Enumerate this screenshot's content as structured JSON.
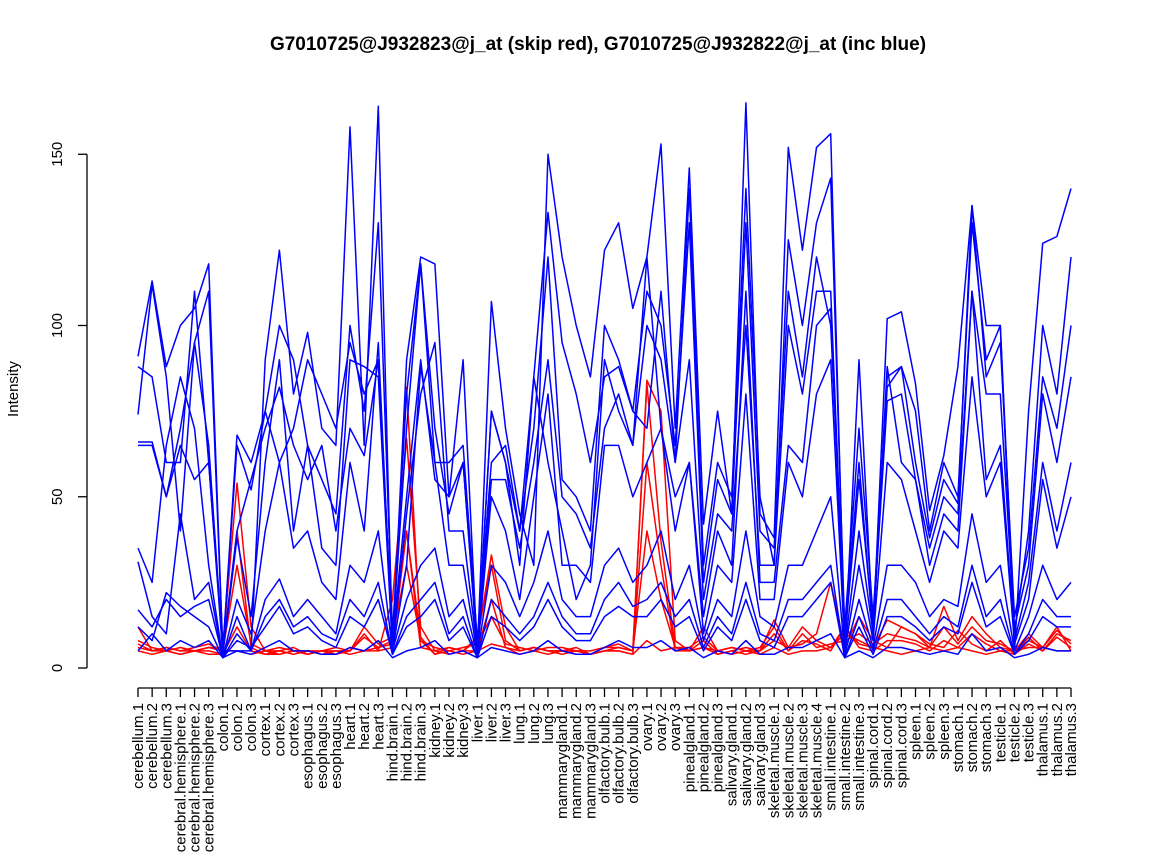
{
  "chart_data": {
    "type": "line",
    "title": "G7010725@J932823@j_at (skip red), G7010725@J932822@j_at (inc blue)",
    "xlabel": "",
    "ylabel": "Intensity",
    "ylim": [
      0,
      165
    ],
    "yticks": [
      0,
      50,
      100,
      150
    ],
    "grid": false,
    "legend": "none",
    "colors": {
      "red": "#ff0000",
      "blue": "#0000ff"
    },
    "categories": [
      "cerebellum.1",
      "cerebellum.2",
      "cerebellum.3",
      "cerebral.hemisphere.1",
      "cerebral.hemisphere.2",
      "cerebral.hemisphere.3",
      "colon.1",
      "colon.2",
      "colon.3",
      "cortex.1",
      "cortex.2",
      "cortex.3",
      "esophagus.1",
      "esophagus.2",
      "esophagus.3",
      "heart.1",
      "heart.2",
      "heart.3",
      "hind.brain.1",
      "hind.brain.2",
      "hind.brain.3",
      "kidney.1",
      "kidney.2",
      "kidney.3",
      "liver.1",
      "liver.2",
      "liver.3",
      "lung.1",
      "lung.2",
      "lung.3",
      "mammarygland.1",
      "mammarygland.2",
      "mammarygland.3",
      "olfactory.bulb.1",
      "olfactory.bulb.2",
      "olfactory.bulb.3",
      "ovary.1",
      "ovary.2",
      "ovary.3",
      "pinealgland.1",
      "pinealgland.2",
      "pinealgland.3",
      "salivary.gland.1",
      "salivary.gland.2",
      "salivary.gland.3",
      "skeletal.muscle.1",
      "skeletal.muscle.2",
      "skeletal.muscle.3",
      "skeletal.muscle.4",
      "small.intestine.1",
      "small.intestine.2",
      "small.intestine.3",
      "spinal.cord.1",
      "spinal.cord.2",
      "spinal.cord.3",
      "spleen.1",
      "spleen.2",
      "spleen.3",
      "stomach.1",
      "stomach.2",
      "stomach.3",
      "testicle.1",
      "testicle.2",
      "testicle.3",
      "thalamus.1",
      "thalamus.2",
      "thalamus.3"
    ],
    "series": [
      {
        "color": "red",
        "values": [
          12,
          5,
          6,
          5,
          5,
          6,
          5,
          5,
          4,
          5,
          6,
          5,
          4,
          5,
          4,
          6,
          5,
          6,
          8,
          40,
          9,
          4,
          5,
          4,
          5,
          7,
          6,
          5,
          6,
          5,
          4,
          5,
          4,
          5,
          5,
          4,
          8,
          5,
          6,
          5,
          6,
          5,
          4,
          5,
          4,
          6,
          4,
          5,
          5,
          6,
          12,
          7,
          6,
          5,
          4,
          5,
          6,
          5,
          6,
          5,
          4,
          5,
          5,
          6,
          6,
          5,
          5
        ]
      },
      {
        "color": "red",
        "values": [
          8,
          6,
          5,
          4,
          5,
          5,
          4,
          12,
          5,
          4,
          5,
          4,
          5,
          5,
          6,
          5,
          10,
          5,
          20,
          67,
          12,
          5,
          6,
          5,
          8,
          33,
          12,
          5,
          6,
          5,
          5,
          6,
          4,
          5,
          6,
          5,
          84,
          75,
          8,
          5,
          6,
          4,
          5,
          6,
          5,
          8,
          6,
          7,
          10,
          25,
          6,
          15,
          8,
          6,
          12,
          10,
          6,
          18,
          8,
          15,
          10,
          6,
          5,
          8,
          6,
          12,
          5
        ]
      },
      {
        "color": "red",
        "values": [
          6,
          5,
          5,
          6,
          5,
          6,
          6,
          54,
          12,
          5,
          4,
          5,
          4,
          5,
          4,
          5,
          9,
          6,
          7,
          82,
          8,
          4,
          6,
          5,
          9,
          30,
          8,
          5,
          6,
          5,
          5,
          5,
          4,
          6,
          6,
          5,
          83,
          37,
          6,
          5,
          12,
          5,
          6,
          5,
          5,
          14,
          6,
          12,
          8,
          6,
          10,
          8,
          6,
          14,
          12,
          10,
          7,
          6,
          11,
          7,
          5,
          8,
          4,
          9,
          5,
          10,
          8
        ]
      },
      {
        "color": "red",
        "values": [
          5,
          4,
          5,
          4,
          5,
          4,
          4,
          40,
          6,
          4,
          4,
          5,
          5,
          4,
          5,
          4,
          5,
          5,
          6,
          40,
          6,
          5,
          4,
          5,
          5,
          20,
          6,
          4,
          5,
          4,
          5,
          4,
          4,
          5,
          5,
          4,
          60,
          30,
          5,
          5,
          8,
          4,
          5,
          4,
          5,
          10,
          5,
          8,
          7,
          5,
          12,
          6,
          5,
          8,
          8,
          7,
          5,
          8,
          6,
          10,
          7,
          5,
          4,
          7,
          5,
          9,
          6
        ]
      },
      {
        "color": "red",
        "values": [
          7,
          5,
          6,
          5,
          6,
          7,
          5,
          30,
          7,
          5,
          5,
          6,
          4,
          5,
          5,
          5,
          12,
          7,
          9,
          30,
          8,
          6,
          5,
          6,
          7,
          15,
          7,
          6,
          5,
          6,
          6,
          5,
          5,
          6,
          7,
          5,
          40,
          20,
          6,
          6,
          9,
          5,
          6,
          5,
          6,
          12,
          5,
          10,
          6,
          7,
          8,
          10,
          7,
          10,
          9,
          8,
          6,
          12,
          7,
          12,
          8,
          7,
          5,
          10,
          6,
          11,
          7
        ]
      },
      {
        "color": "blue",
        "values": [
          91,
          113,
          88,
          100,
          105,
          118,
          5,
          5,
          5,
          90,
          122,
          80,
          98,
          70,
          65,
          158,
          65,
          164,
          5,
          90,
          120,
          118,
          50,
          90,
          4,
          107,
          70,
          45,
          30,
          150,
          120,
          100,
          85,
          122,
          130,
          105,
          120,
          153,
          70,
          146,
          42,
          75,
          45,
          165,
          45,
          38,
          152,
          122,
          152,
          156,
          5,
          90,
          10,
          102,
          104,
          83,
          46,
          62,
          88,
          135,
          100,
          100,
          5,
          75,
          124,
          126,
          140
        ]
      },
      {
        "color": "blue",
        "values": [
          74,
          112,
          85,
          40,
          95,
          110,
          5,
          68,
          60,
          75,
          60,
          70,
          90,
          80,
          70,
          95,
          80,
          90,
          8,
          70,
          118,
          70,
          45,
          60,
          5,
          75,
          60,
          40,
          85,
          133,
          95,
          80,
          60,
          85,
          88,
          75,
          70,
          110,
          60,
          140,
          30,
          60,
          50,
          140,
          50,
          30,
          125,
          100,
          130,
          143,
          10,
          60,
          10,
          85,
          88,
          75,
          40,
          60,
          50,
          130,
          90,
          100,
          10,
          40,
          100,
          80,
          120
        ]
      },
      {
        "color": "blue",
        "values": [
          66,
          66,
          50,
          70,
          95,
          65,
          5,
          65,
          52,
          75,
          100,
          90,
          65,
          55,
          45,
          100,
          75,
          130,
          10,
          80,
          118,
          60,
          60,
          65,
          8,
          60,
          65,
          40,
          70,
          120,
          55,
          50,
          40,
          100,
          90,
          75,
          110,
          100,
          65,
          130,
          25,
          55,
          45,
          130,
          40,
          35,
          110,
          85,
          120,
          100,
          12,
          70,
          15,
          82,
          88,
          60,
          38,
          55,
          48,
          135,
          85,
          95,
          15,
          35,
          85,
          70,
          100
        ]
      },
      {
        "color": "blue",
        "values": [
          65,
          65,
          50,
          65,
          55,
          60,
          5,
          40,
          55,
          70,
          82,
          65,
          55,
          65,
          40,
          70,
          62,
          90,
          8,
          50,
          90,
          55,
          50,
          60,
          5,
          55,
          55,
          35,
          60,
          90,
          50,
          45,
          35,
          70,
          80,
          65,
          100,
          90,
          60,
          90,
          20,
          45,
          40,
          100,
          30,
          30,
          100,
          80,
          110,
          110,
          8,
          55,
          12,
          78,
          80,
          55,
          35,
          50,
          45,
          110,
          80,
          80,
          12,
          30,
          80,
          60,
          85
        ]
      },
      {
        "color": "blue",
        "values": [
          88,
          85,
          60,
          60,
          110,
          60,
          4,
          38,
          15,
          60,
          90,
          40,
          65,
          35,
          30,
          90,
          88,
          85,
          5,
          45,
          80,
          95,
          40,
          40,
          5,
          75,
          60,
          30,
          85,
          60,
          40,
          20,
          30,
          90,
          75,
          65,
          120,
          70,
          50,
          60,
          15,
          40,
          30,
          110,
          25,
          25,
          65,
          60,
          100,
          105,
          6,
          40,
          10,
          88,
          60,
          55,
          30,
          45,
          40,
          110,
          55,
          65,
          8,
          25,
          60,
          40,
          60
        ]
      },
      {
        "color": "blue",
        "values": [
          35,
          25,
          65,
          85,
          70,
          30,
          3,
          20,
          10,
          40,
          60,
          35,
          40,
          25,
          20,
          60,
          40,
          95,
          5,
          30,
          88,
          60,
          30,
          30,
          4,
          50,
          40,
          20,
          50,
          80,
          30,
          30,
          25,
          65,
          65,
          50,
          60,
          70,
          40,
          60,
          10,
          30,
          25,
          80,
          20,
          20,
          60,
          50,
          80,
          90,
          5,
          30,
          8,
          60,
          55,
          40,
          25,
          40,
          35,
          85,
          50,
          60,
          7,
          20,
          55,
          35,
          50
        ]
      },
      {
        "color": "blue",
        "values": [
          31,
          15,
          10,
          45,
          20,
          25,
          3,
          15,
          5,
          20,
          26,
          15,
          20,
          15,
          10,
          30,
          25,
          40,
          5,
          20,
          30,
          35,
          15,
          20,
          4,
          30,
          25,
          15,
          25,
          40,
          20,
          15,
          15,
          30,
          35,
          25,
          30,
          40,
          20,
          30,
          8,
          20,
          15,
          40,
          15,
          12,
          30,
          30,
          40,
          50,
          4,
          20,
          6,
          30,
          30,
          25,
          15,
          20,
          18,
          45,
          25,
          30,
          5,
          15,
          30,
          20,
          25
        ]
      },
      {
        "color": "blue",
        "values": [
          17,
          12,
          20,
          15,
          18,
          20,
          3,
          10,
          5,
          15,
          20,
          12,
          15,
          10,
          8,
          20,
          15,
          25,
          4,
          15,
          20,
          25,
          10,
          15,
          3,
          20,
          15,
          10,
          15,
          25,
          15,
          10,
          10,
          20,
          25,
          18,
          20,
          25,
          15,
          20,
          6,
          15,
          10,
          25,
          10,
          8,
          20,
          20,
          25,
          30,
          3,
          15,
          5,
          20,
          20,
          15,
          10,
          15,
          12,
          30,
          15,
          20,
          4,
          10,
          20,
          15,
          15
        ]
      },
      {
        "color": "blue",
        "values": [
          12,
          8,
          22,
          18,
          15,
          12,
          3,
          8,
          6,
          12,
          18,
          10,
          12,
          8,
          6,
          15,
          12,
          20,
          4,
          12,
          15,
          20,
          8,
          12,
          3,
          15,
          12,
          8,
          12,
          20,
          12,
          8,
          8,
          15,
          18,
          15,
          15,
          20,
          12,
          15,
          5,
          12,
          8,
          20,
          8,
          6,
          15,
          15,
          20,
          25,
          3,
          12,
          4,
          15,
          15,
          12,
          8,
          12,
          10,
          25,
          12,
          15,
          4,
          8,
          15,
          12,
          12
        ]
      },
      {
        "color": "blue",
        "values": [
          5,
          10,
          5,
          8,
          6,
          8,
          3,
          5,
          4,
          6,
          8,
          5,
          5,
          4,
          4,
          6,
          5,
          8,
          3,
          5,
          6,
          8,
          4,
          5,
          3,
          6,
          5,
          4,
          5,
          8,
          5,
          4,
          4,
          6,
          8,
          6,
          6,
          8,
          5,
          6,
          3,
          5,
          4,
          8,
          4,
          4,
          6,
          6,
          8,
          10,
          3,
          5,
          3,
          6,
          6,
          5,
          4,
          5,
          4,
          10,
          5,
          6,
          3,
          4,
          6,
          5,
          5
        ]
      }
    ]
  }
}
